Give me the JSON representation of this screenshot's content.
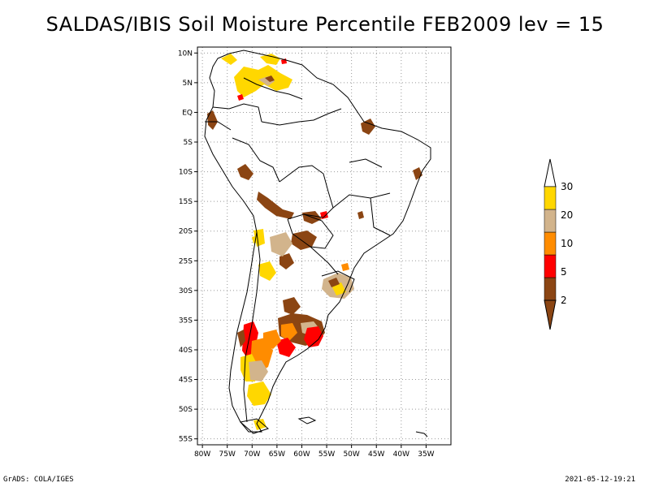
{
  "title": "SALDAS/IBIS Soil Moisture Percentile FEB2009 lev = 15",
  "footer": {
    "left": "GrADS: COLA/IGES",
    "right": "2021-05-12-19:21"
  },
  "map": {
    "lon_range": [
      -81,
      -30
    ],
    "lat_range": [
      -56,
      11
    ],
    "lat_ticks": [
      {
        "v": 10,
        "t": "10N"
      },
      {
        "v": 5,
        "t": "5N"
      },
      {
        "v": 0,
        "t": "EQ"
      },
      {
        "v": -5,
        "t": "5S"
      },
      {
        "v": -10,
        "t": "10S"
      },
      {
        "v": -15,
        "t": "15S"
      },
      {
        "v": -20,
        "t": "20S"
      },
      {
        "v": -25,
        "t": "25S"
      },
      {
        "v": -30,
        "t": "30S"
      },
      {
        "v": -35,
        "t": "35S"
      },
      {
        "v": -40,
        "t": "40S"
      },
      {
        "v": -45,
        "t": "45S"
      },
      {
        "v": -50,
        "t": "50S"
      },
      {
        "v": -55,
        "t": "55S"
      }
    ],
    "lon_ticks": [
      {
        "v": -80,
        "t": "80W"
      },
      {
        "v": -75,
        "t": "75W"
      },
      {
        "v": -70,
        "t": "70W"
      },
      {
        "v": -65,
        "t": "65W"
      },
      {
        "v": -60,
        "t": "60W"
      },
      {
        "v": -55,
        "t": "55W"
      },
      {
        "v": -50,
        "t": "50W"
      },
      {
        "v": -45,
        "t": "45W"
      },
      {
        "v": -40,
        "t": "40W"
      },
      {
        "v": -35,
        "t": "35W"
      }
    ],
    "grid": true
  },
  "legend": {
    "bins": [
      {
        "label": "2",
        "color": "#8b4513"
      },
      {
        "label": "5",
        "color": "#ff0000"
      },
      {
        "label": "10",
        "color": "#ff8c00"
      },
      {
        "label": "20",
        "color": "#d2b48c"
      },
      {
        "label": "30",
        "color": "#ffd700"
      }
    ],
    "below_color": "#8b4513",
    "above_color": "#ffffff"
  },
  "colors": {
    "brown": "#8b4513",
    "red": "#ff0000",
    "orange": "#ff8c00",
    "tan": "#d2b48c",
    "yellow": "#ffd700"
  }
}
